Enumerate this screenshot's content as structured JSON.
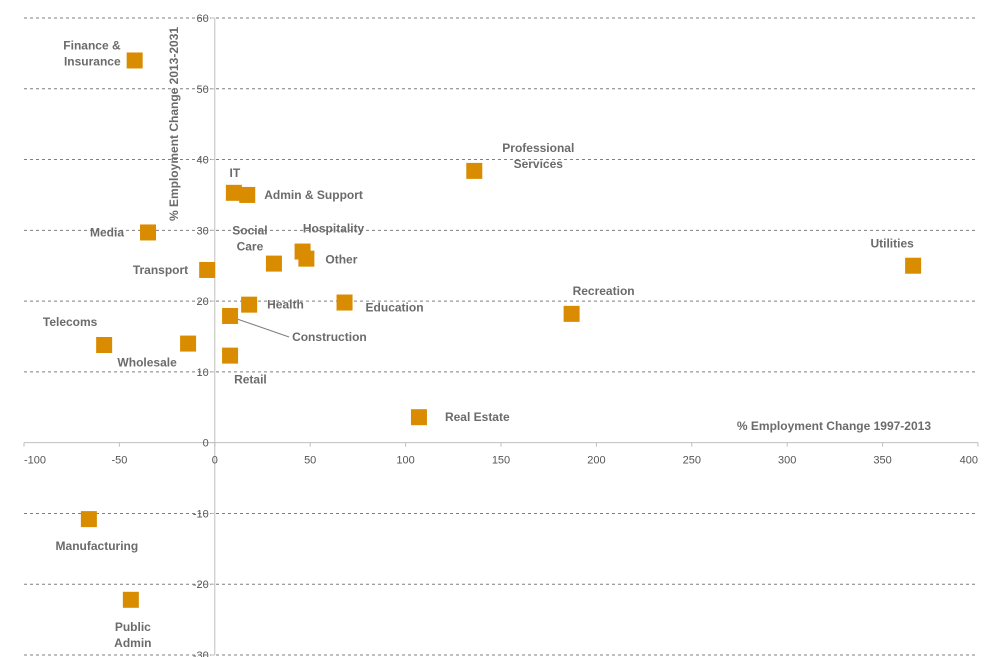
{
  "chart_data": {
    "type": "scatter",
    "xlabel": "% Employment Change 1997-2013",
    "ylabel": "% Employment Change 2013-2031",
    "xlim": [
      -100,
      400
    ],
    "ylim": [
      -30,
      60
    ],
    "x_ticks": [
      -100,
      -50,
      0,
      50,
      100,
      150,
      200,
      250,
      300,
      350,
      400
    ],
    "y_ticks": [
      -30,
      -20,
      -10,
      0,
      10,
      20,
      30,
      40,
      50,
      60
    ],
    "grid": "horizontal dashed",
    "marker_color": "#D98C00",
    "points": [
      {
        "label": "Finance &\nInsurance",
        "x": -42,
        "y": 54
      },
      {
        "label": "Professional\nServices",
        "x": 136,
        "y": 38.4
      },
      {
        "label": "IT",
        "x": 10,
        "y": 35.3
      },
      {
        "label": "Admin & Support",
        "x": 17,
        "y": 35
      },
      {
        "label": "Media",
        "x": -35,
        "y": 29.7
      },
      {
        "label": "Social\nCare",
        "x": 31,
        "y": 25.3
      },
      {
        "label": "Hospitality",
        "x": 46,
        "y": 27
      },
      {
        "label": "Other",
        "x": 48,
        "y": 26
      },
      {
        "label": "Transport",
        "x": -4,
        "y": 24.4
      },
      {
        "label": "Utilities",
        "x": 366,
        "y": 25
      },
      {
        "label": "Recreation",
        "x": 187,
        "y": 18.2
      },
      {
        "label": "Health",
        "x": 18,
        "y": 19.5
      },
      {
        "label": "Education",
        "x": 68,
        "y": 19.8
      },
      {
        "label": "Construction",
        "x": 8,
        "y": 17.9
      },
      {
        "label": "Telecoms",
        "x": -58,
        "y": 13.8
      },
      {
        "label": "Wholesale",
        "x": -14,
        "y": 14
      },
      {
        "label": "Retail",
        "x": 8,
        "y": 12.3
      },
      {
        "label": "Real Estate",
        "x": 107,
        "y": 3.6
      },
      {
        "label": "Manufacturing",
        "x": -66,
        "y": -10.8
      },
      {
        "label": "Public\nAdmin",
        "x": -44,
        "y": -22.2
      }
    ]
  }
}
